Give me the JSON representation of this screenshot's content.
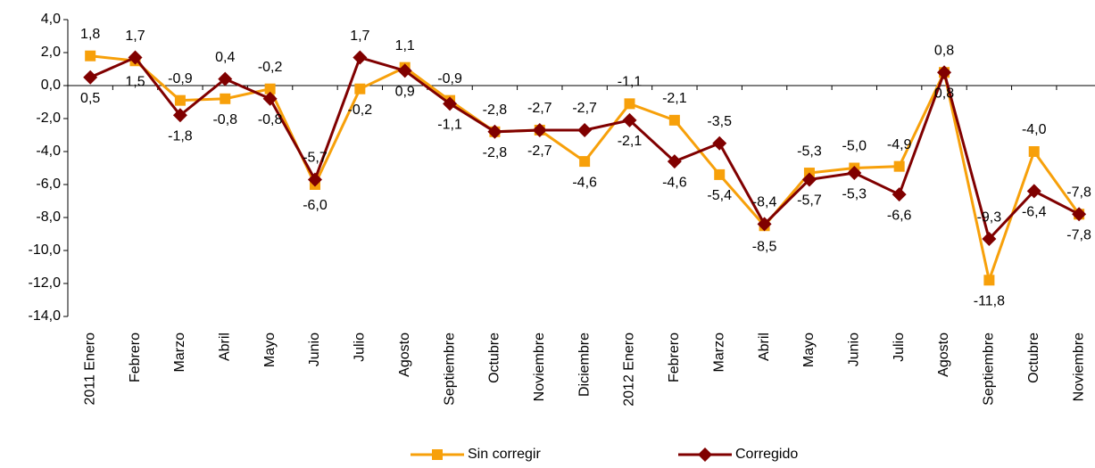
{
  "chart_data": {
    "type": "line",
    "categories": [
      "2011 Enero",
      "Febrero",
      "Marzo",
      "Abril",
      "Mayo",
      "Junio",
      "Julio",
      "Agosto",
      "Septiembre",
      "Octubre",
      "Noviembre",
      "Diciembre",
      "2012 Enero",
      "Febrero",
      "Marzo",
      "Abril",
      "Mayo",
      "Junio",
      "Julio",
      "Agosto",
      "Septiembre",
      "Octubre",
      "Noviembre"
    ],
    "series": [
      {
        "name": "Sin corregir",
        "color": "#f7a00a",
        "marker": "square",
        "values": [
          1.8,
          1.5,
          -0.9,
          -0.8,
          -0.2,
          -6.0,
          -0.2,
          1.1,
          -0.9,
          -2.8,
          -2.7,
          -4.6,
          -1.1,
          -2.1,
          -5.4,
          -8.5,
          -5.3,
          -5.0,
          -4.9,
          0.8,
          -11.8,
          -4.0,
          -7.8
        ],
        "value_labels": [
          "1,8",
          "1,5",
          "-0,9",
          "-0,8",
          "-0,2",
          "-6,0",
          "-0,2",
          "1,1",
          "-0,9",
          "-2,8",
          "-2,7",
          "-4,6",
          "-1,1",
          "-2,1",
          "-5,4",
          "-8,5",
          "-5,3",
          "-5,0",
          "-4,9",
          "0,8",
          "-11,8",
          "-4,0",
          "-7,8"
        ]
      },
      {
        "name": "Corregido",
        "color": "#800000",
        "marker": "diamond",
        "values": [
          0.5,
          1.7,
          -1.8,
          0.4,
          -0.8,
          -5.7,
          1.7,
          0.9,
          -1.1,
          -2.8,
          -2.7,
          -2.7,
          -2.1,
          -4.6,
          -3.5,
          -8.4,
          -5.7,
          -5.3,
          -6.6,
          0.8,
          -9.3,
          -6.4,
          -7.8
        ],
        "value_labels": [
          "0,5",
          "1,7",
          "-1,8",
          "0,4",
          "-0,8",
          "-5,7",
          "1,7",
          "0,9",
          "-1,1",
          "-2,8",
          "-2,7",
          "-2,7",
          "-2,1",
          "-4,6",
          "-3,5",
          "-8,4",
          "-5,7",
          "-5,3",
          "-6,6",
          "0,8",
          "-9,3",
          "-6,4",
          "-7,8"
        ]
      }
    ],
    "ylim": [
      -14,
      4
    ],
    "yticks": [
      {
        "value": -14,
        "label": "-14,0"
      },
      {
        "value": -12,
        "label": "-12,0"
      },
      {
        "value": -10,
        "label": "-10,0"
      },
      {
        "value": -8,
        "label": "-8,0"
      },
      {
        "value": -6,
        "label": "-6,0"
      },
      {
        "value": -4,
        "label": "-4,0"
      },
      {
        "value": -2,
        "label": "-2,0"
      },
      {
        "value": 0,
        "label": "0,0"
      },
      {
        "value": 2,
        "label": "2,0"
      },
      {
        "value": 4,
        "label": "4,0"
      }
    ],
    "grid": false,
    "legend": "bottom"
  }
}
